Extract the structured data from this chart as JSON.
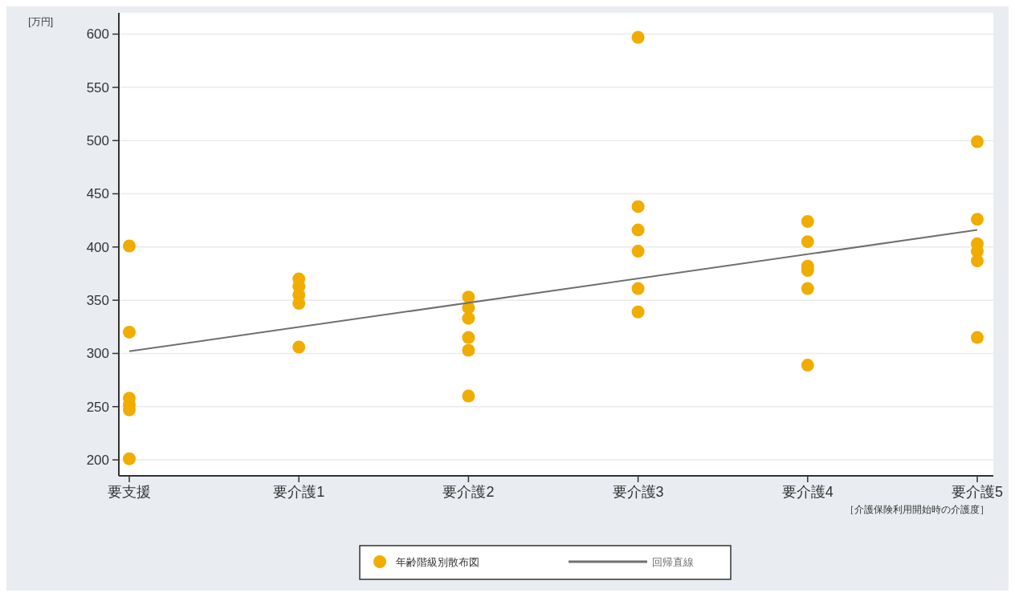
{
  "chart_data": {
    "type": "scatter",
    "ylabel": "[万円]",
    "xlabel": "［介護保険利用開始時の介護度］",
    "categories": [
      "要支援",
      "要介護1",
      "要介護2",
      "要介護3",
      "要介護4",
      "要介護5"
    ],
    "ylim": [
      185,
      620
    ],
    "yticks": [
      200,
      250,
      300,
      350,
      400,
      450,
      500,
      550,
      600
    ],
    "grid": "y",
    "legend": "bottom",
    "marker": "circle",
    "series": [
      {
        "name": "年齢階級別散布図",
        "color": "#f0ad00",
        "x": [
          "要支援",
          "要支援",
          "要支援",
          "要支援",
          "要支援",
          "要支援",
          "要介護1",
          "要介護1",
          "要介護1",
          "要介護1",
          "要介護1",
          "要介護2",
          "要介護2",
          "要介護2",
          "要介護2",
          "要介護2",
          "要介護2",
          "要介護3",
          "要介護3",
          "要介護3",
          "要介護3",
          "要介護3",
          "要介護3",
          "要介護4",
          "要介護4",
          "要介護4",
          "要介護4",
          "要介護4",
          "要介護4",
          "要介護5",
          "要介護5",
          "要介護5",
          "要介護5",
          "要介護5",
          "要介護5"
        ],
        "values": [
          401,
          320,
          258,
          252,
          247,
          201,
          370,
          363,
          355,
          347,
          306,
          353,
          343,
          333,
          315,
          303,
          260,
          597,
          438,
          416,
          396,
          361,
          339,
          424,
          405,
          382,
          378,
          361,
          289,
          499,
          426,
          403,
          396,
          387,
          315
        ]
      },
      {
        "type": "line",
        "name": "回帰直線",
        "color": "#707070",
        "line_style": "solid",
        "marker": "none",
        "x": [
          "要支援",
          "要介護5"
        ],
        "values": [
          302,
          416
        ]
      }
    ]
  }
}
